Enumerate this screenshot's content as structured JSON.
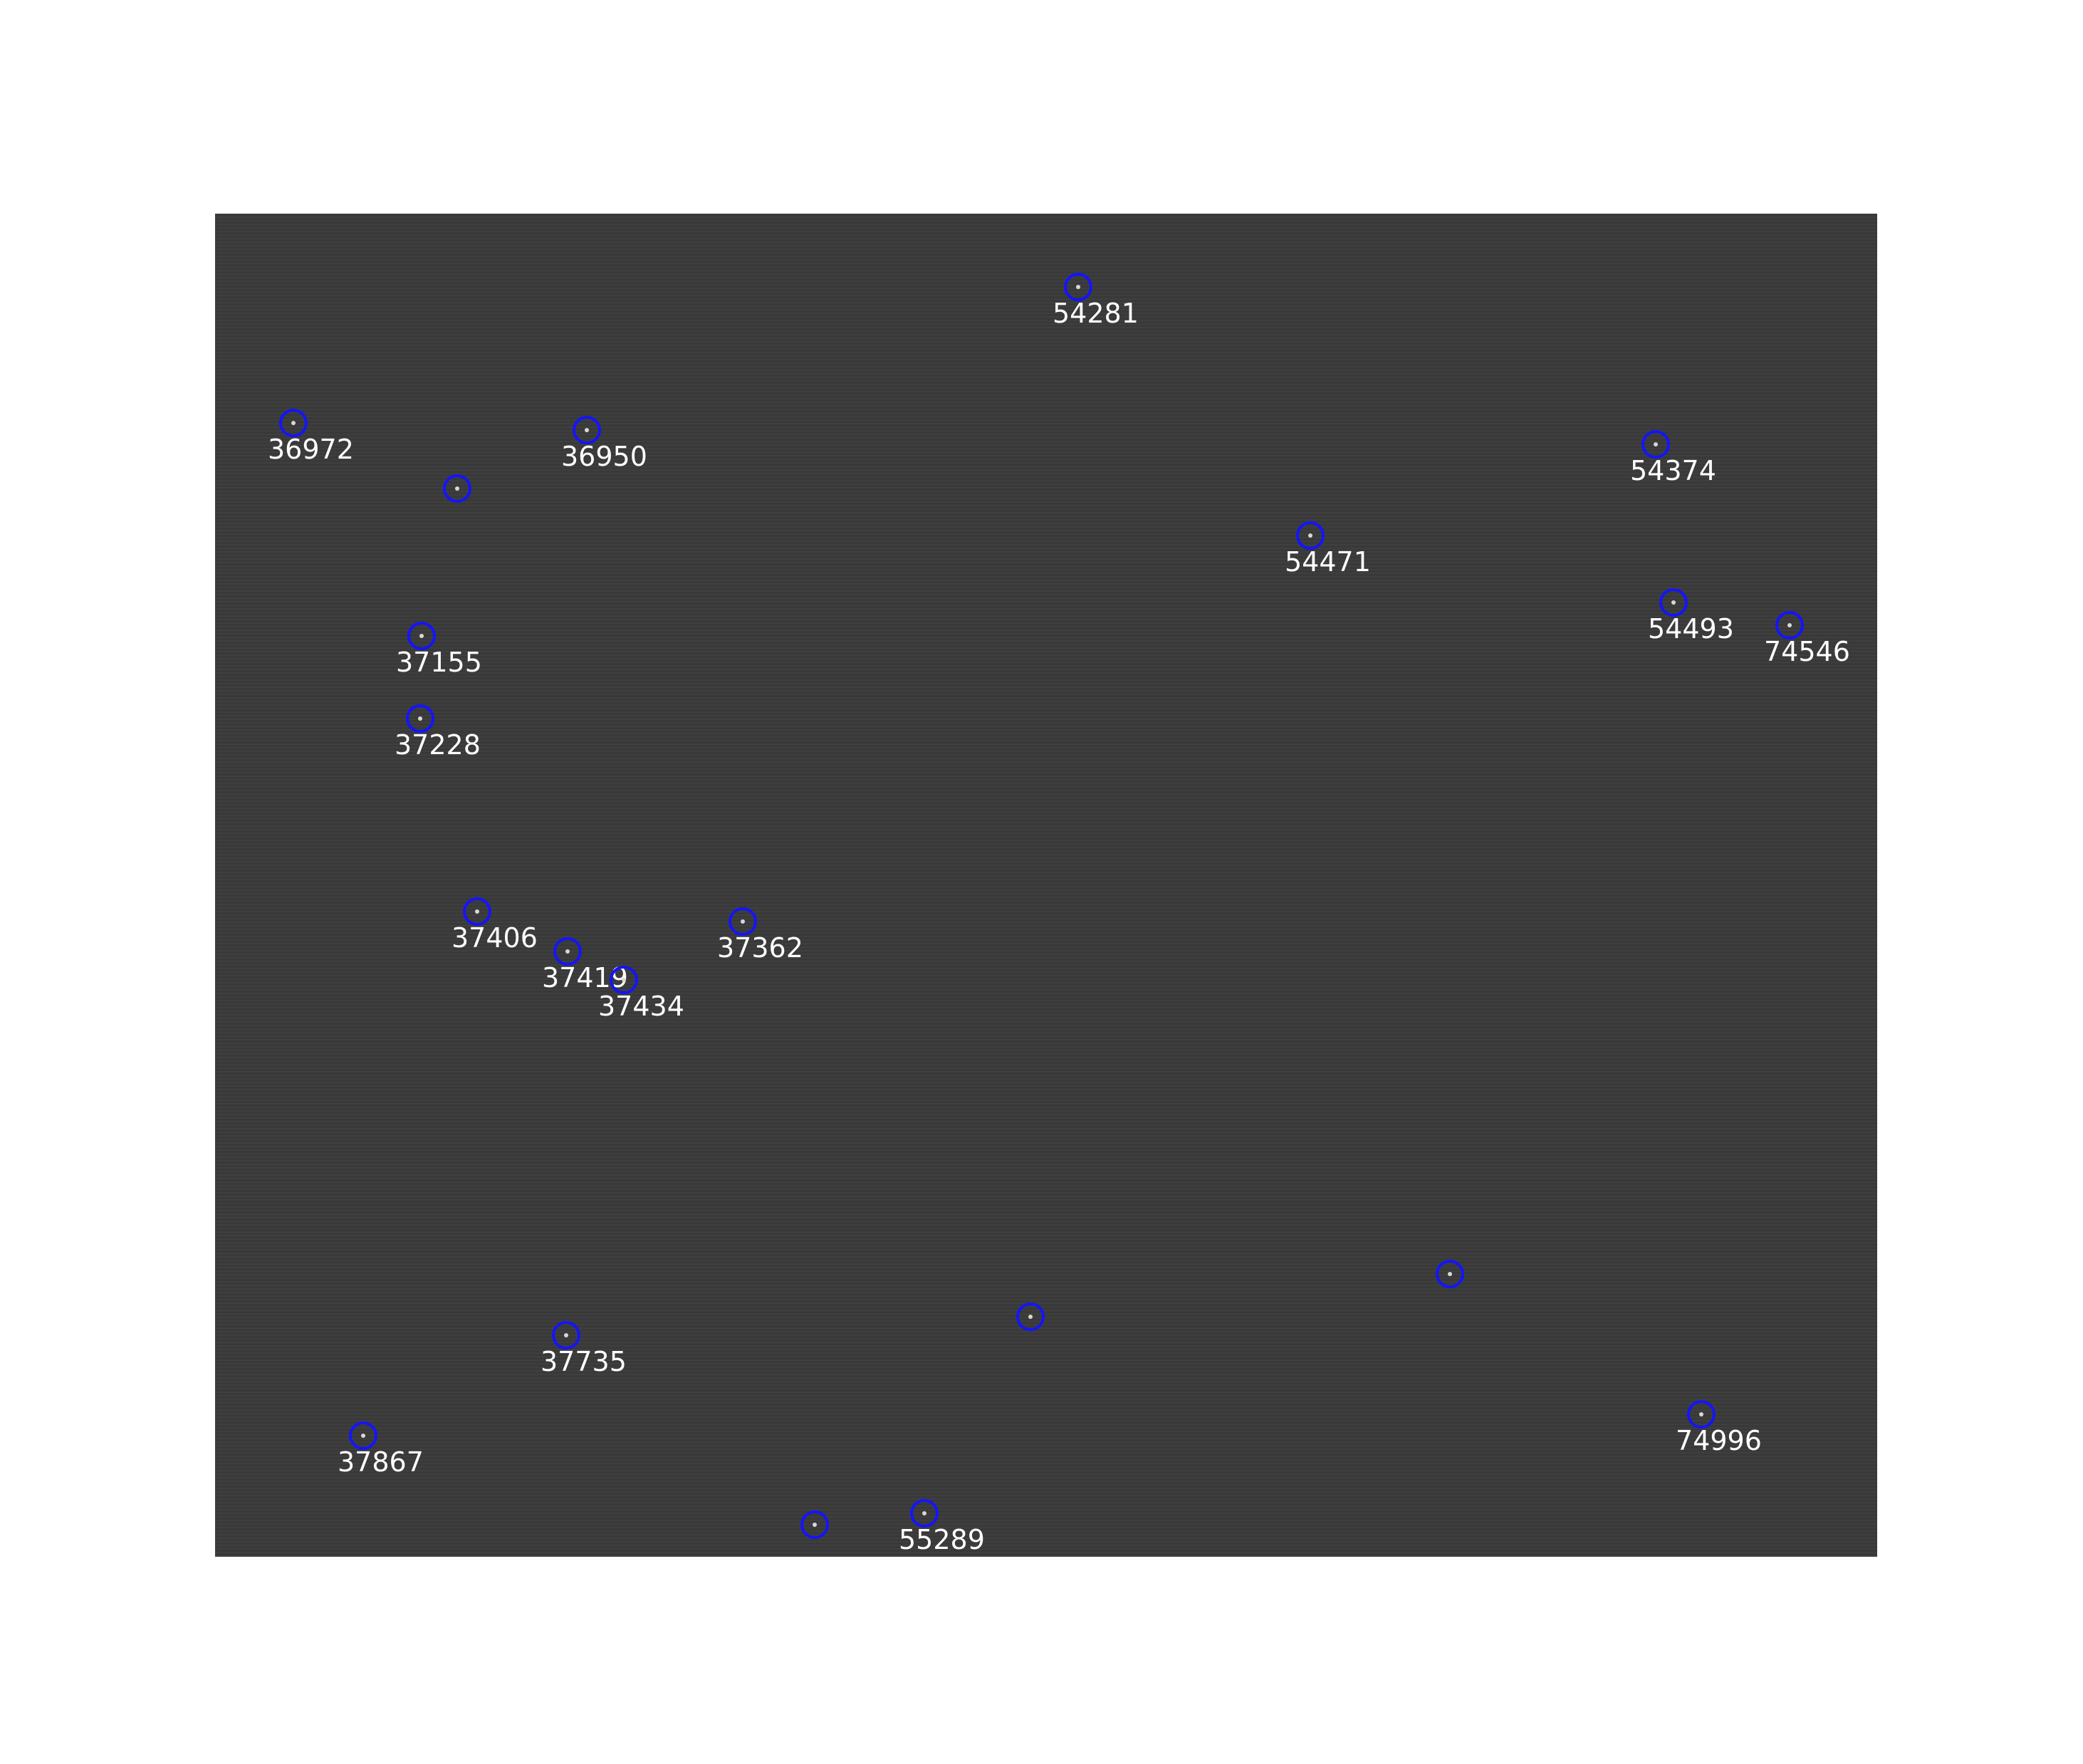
{
  "image": {
    "marker_color": "#1414ff",
    "label_color": "#ffffff",
    "field_color": "#3b3b3b"
  },
  "markers": [
    {
      "label": "54281"
    },
    {
      "label": "36972"
    },
    {
      "label": "36950"
    },
    {
      "label": ""
    },
    {
      "label": "54374"
    },
    {
      "label": "54471"
    },
    {
      "label": "54493"
    },
    {
      "label": "74546"
    },
    {
      "label": "37155"
    },
    {
      "label": "37228"
    },
    {
      "label": "37406"
    },
    {
      "label": "37419"
    },
    {
      "label": "37434"
    },
    {
      "label": "37362"
    },
    {
      "label": ""
    },
    {
      "label": ""
    },
    {
      "label": "37735"
    },
    {
      "label": "74996"
    },
    {
      "label": "37867"
    },
    {
      "label": ""
    },
    {
      "label": "55289"
    }
  ]
}
